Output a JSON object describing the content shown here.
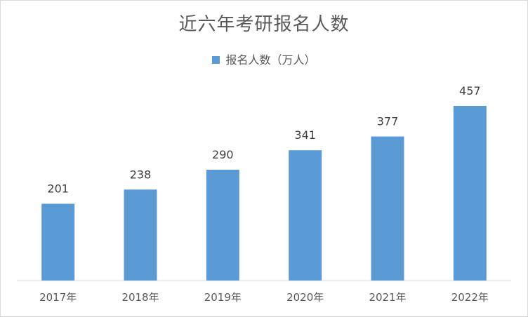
{
  "chart_data": {
    "type": "bar",
    "title": "近六年考研报名人数",
    "categories": [
      "2017年",
      "2018年",
      "2019年",
      "2020年",
      "2021年",
      "2022年"
    ],
    "series": [
      {
        "name": "报名人数（万人）",
        "values": [
          201,
          238,
          290,
          341,
          377,
          457
        ],
        "color": "#5b9bd5"
      }
    ],
    "ylim": [
      0,
      500
    ],
    "grid": false,
    "legend": "top",
    "data_labels": true
  }
}
